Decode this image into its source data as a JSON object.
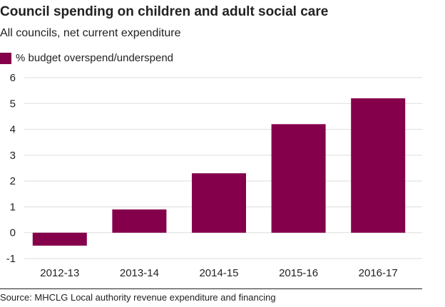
{
  "header": {
    "title": "Council spending on children and adult social care",
    "subtitle": "All councils, net current expenditure"
  },
  "legend": {
    "label": "% budget overspend/underspend"
  },
  "footer": {
    "source": "Source: MHCLG Local authority revenue expenditure and financing"
  },
  "colors": {
    "bar": "#85004b",
    "grid": "#dddddd",
    "text": "#222222"
  },
  "chart_data": {
    "type": "bar",
    "title": "Council spending on children and adult social care",
    "subtitle": "All councils, net current expenditure",
    "xlabel": "",
    "ylabel": "",
    "categories": [
      "2012-13",
      "2013-14",
      "2014-15",
      "2015-16",
      "2016-17"
    ],
    "series": [
      {
        "name": "% budget overspend/underspend",
        "values": [
          -0.5,
          0.9,
          2.3,
          4.2,
          5.2
        ]
      }
    ],
    "ylim": [
      -1,
      6
    ],
    "yticks": [
      "-1",
      "0",
      "1",
      "2",
      "3",
      "4",
      "5",
      "6"
    ],
    "grid": true,
    "legend_position": "top-left"
  }
}
